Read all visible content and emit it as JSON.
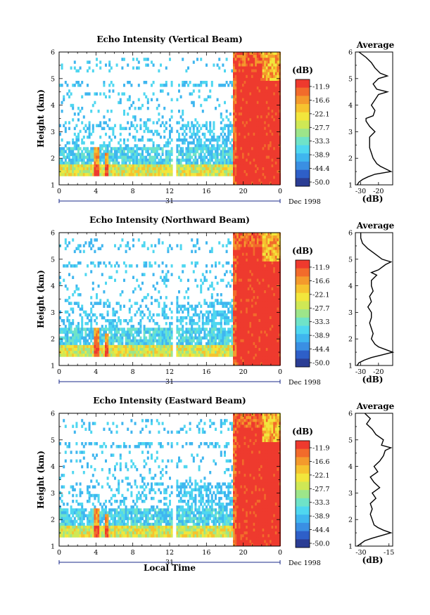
{
  "chart_data": [
    {
      "type": "heatmap",
      "title": "Echo Intensity (Vertical Beam)",
      "ylabel": "Height (km)",
      "xlabel": "",
      "xlim": [
        0,
        24
      ],
      "ylim": [
        1,
        6
      ],
      "x_ticks": [
        "0",
        "4",
        "8",
        "12",
        "16",
        "20",
        "0"
      ],
      "y_ticks": [
        "1",
        "2",
        "3",
        "4",
        "5",
        "6"
      ],
      "date_day": "31",
      "date_label": "Dec 1998",
      "colorbar": {
        "unit": "(dB)",
        "labels": [
          "-11.9",
          "-16.6",
          "-22.1",
          "-27.7",
          "-33.3",
          "-38.9",
          "-44.4",
          "-50.0"
        ]
      },
      "avg_profile": {
        "title": "Average",
        "xlabel": "(dB)",
        "xlim": [
          -33,
          -12
        ],
        "x_ticks": [
          "-30",
          "-20"
        ],
        "height": [
          1.0,
          1.1,
          1.2,
          1.3,
          1.4,
          1.5,
          1.6,
          1.7,
          1.8,
          1.9,
          2.0,
          2.2,
          2.4,
          2.6,
          2.8,
          3.0,
          3.2,
          3.3,
          3.4,
          3.5,
          3.6,
          3.8,
          4.0,
          4.2,
          4.4,
          4.5,
          4.6,
          4.8,
          5.0,
          5.1,
          5.2,
          5.4,
          5.6,
          5.8,
          6.0
        ],
        "db": [
          -32,
          -31,
          -29,
          -26,
          -22,
          -13,
          -16,
          -19,
          -21,
          -22,
          -23,
          -24,
          -25,
          -25,
          -25,
          -22,
          -25,
          -26,
          -27,
          -27,
          -23,
          -22,
          -24,
          -22,
          -20,
          -15,
          -21,
          -23,
          -20,
          -15,
          -19,
          -22,
          -24,
          -27,
          -31
        ]
      }
    },
    {
      "type": "heatmap",
      "title": "Echo Intensity (Northward Beam)",
      "ylabel": "Height (km)",
      "xlabel": "",
      "xlim": [
        0,
        24
      ],
      "ylim": [
        1,
        6
      ],
      "x_ticks": [
        "0",
        "4",
        "8",
        "12",
        "16",
        "20",
        "0"
      ],
      "y_ticks": [
        "1",
        "2",
        "3",
        "4",
        "5",
        "6"
      ],
      "date_day": "31",
      "date_label": "Dec 1998",
      "colorbar": {
        "unit": "(dB)",
        "labels": [
          "-11.9",
          "-16.6",
          "-22.1",
          "-27.7",
          "-33.3",
          "-38.9",
          "-44.4",
          "-50.0"
        ]
      },
      "avg_profile": {
        "title": "Average",
        "xlabel": "(dB)",
        "xlim": [
          -33,
          -12
        ],
        "x_ticks": [
          "-30",
          "-20"
        ],
        "height": [
          1.0,
          1.1,
          1.2,
          1.3,
          1.4,
          1.5,
          1.6,
          1.7,
          1.8,
          2.0,
          2.2,
          2.4,
          2.6,
          2.8,
          3.0,
          3.2,
          3.4,
          3.6,
          3.8,
          4.0,
          4.2,
          4.4,
          4.5,
          4.6,
          4.8,
          4.9,
          5.0,
          5.2,
          5.4,
          5.6,
          5.8,
          6.0
        ],
        "db": [
          -32,
          -31,
          -28,
          -24,
          -18,
          -12,
          -16,
          -20,
          -22,
          -24,
          -23,
          -24,
          -25,
          -24,
          -24,
          -26,
          -24,
          -25,
          -23,
          -24,
          -24,
          -21,
          -24,
          -20,
          -16,
          -13,
          -18,
          -22,
          -26,
          -29,
          -30,
          -30
        ]
      }
    },
    {
      "type": "heatmap",
      "title": "Echo Intensity (Eastward Beam)",
      "ylabel": "Height (km)",
      "xlabel": "Local Time",
      "xlim": [
        0,
        24
      ],
      "ylim": [
        1,
        6
      ],
      "x_ticks": [
        "0",
        "4",
        "8",
        "12",
        "16",
        "20",
        "0"
      ],
      "y_ticks": [
        "1",
        "2",
        "3",
        "4",
        "5",
        "6"
      ],
      "date_day": "31",
      "date_label": "Dec 1998",
      "colorbar": {
        "unit": "(dB)",
        "labels": [
          "-11.9",
          "-16.6",
          "-22.1",
          "-27.7",
          "-33.3",
          "-38.9",
          "-44.4",
          "-50.0"
        ]
      },
      "avg_profile": {
        "title": "Average",
        "xlabel": "(dB)",
        "xlim": [
          -33,
          -13
        ],
        "x_ticks": [
          "-30",
          "-15"
        ],
        "height": [
          1.0,
          1.1,
          1.2,
          1.3,
          1.4,
          1.5,
          1.6,
          1.7,
          1.8,
          2.0,
          2.2,
          2.4,
          2.6,
          2.8,
          3.0,
          3.2,
          3.4,
          3.6,
          3.8,
          4.0,
          4.2,
          4.4,
          4.6,
          4.7,
          4.8,
          5.0,
          5.2,
          5.4,
          5.6,
          5.8,
          6.0
        ],
        "db": [
          -32,
          -30,
          -28,
          -24,
          -19,
          -14,
          -18,
          -21,
          -23,
          -24,
          -25,
          -24,
          -25,
          -22,
          -24,
          -20,
          -23,
          -25,
          -21,
          -23,
          -20,
          -18,
          -17,
          -14,
          -19,
          -18,
          -22,
          -24,
          -27,
          -25,
          -28
        ]
      }
    }
  ]
}
